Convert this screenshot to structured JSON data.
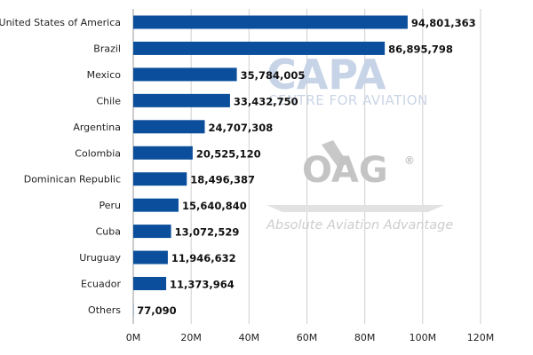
{
  "chart_data": {
    "type": "bar",
    "orientation": "horizontal",
    "categories": [
      "United States of America",
      "Brazil",
      "Mexico",
      "Chile",
      "Argentina",
      "Colombia",
      "Dominican Republic",
      "Peru",
      "Cuba",
      "Uruguay",
      "Ecuador",
      "Others"
    ],
    "values": [
      94801363,
      86895798,
      35784005,
      33432750,
      24707308,
      20525120,
      18496387,
      15640840,
      13072529,
      11946632,
      11373964,
      77090
    ],
    "value_labels": [
      "94,801,363",
      "86,895,798",
      "35,784,005",
      "33,432,750",
      "24,707,308",
      "20,525,120",
      "18,496,387",
      "15,640,840",
      "13,072,529",
      "11,946,632",
      "11,373,964",
      "77,090"
    ],
    "xlim": [
      0,
      120000000
    ],
    "x_ticks": [
      0,
      20000000,
      40000000,
      60000000,
      80000000,
      100000000,
      120000000
    ],
    "x_tick_labels": [
      "0M",
      "20M",
      "40M",
      "60M",
      "80M",
      "100M",
      "120M"
    ],
    "grid": "vertical",
    "bar_color": "#0b4f9c",
    "title": "",
    "xlabel": "",
    "ylabel": ""
  },
  "watermarks": {
    "capa": "CAPA",
    "capa_sub": "CENTRE FOR AVIATION",
    "oag": "OAG",
    "oag_sub": "Absolute Aviation Advantage"
  }
}
